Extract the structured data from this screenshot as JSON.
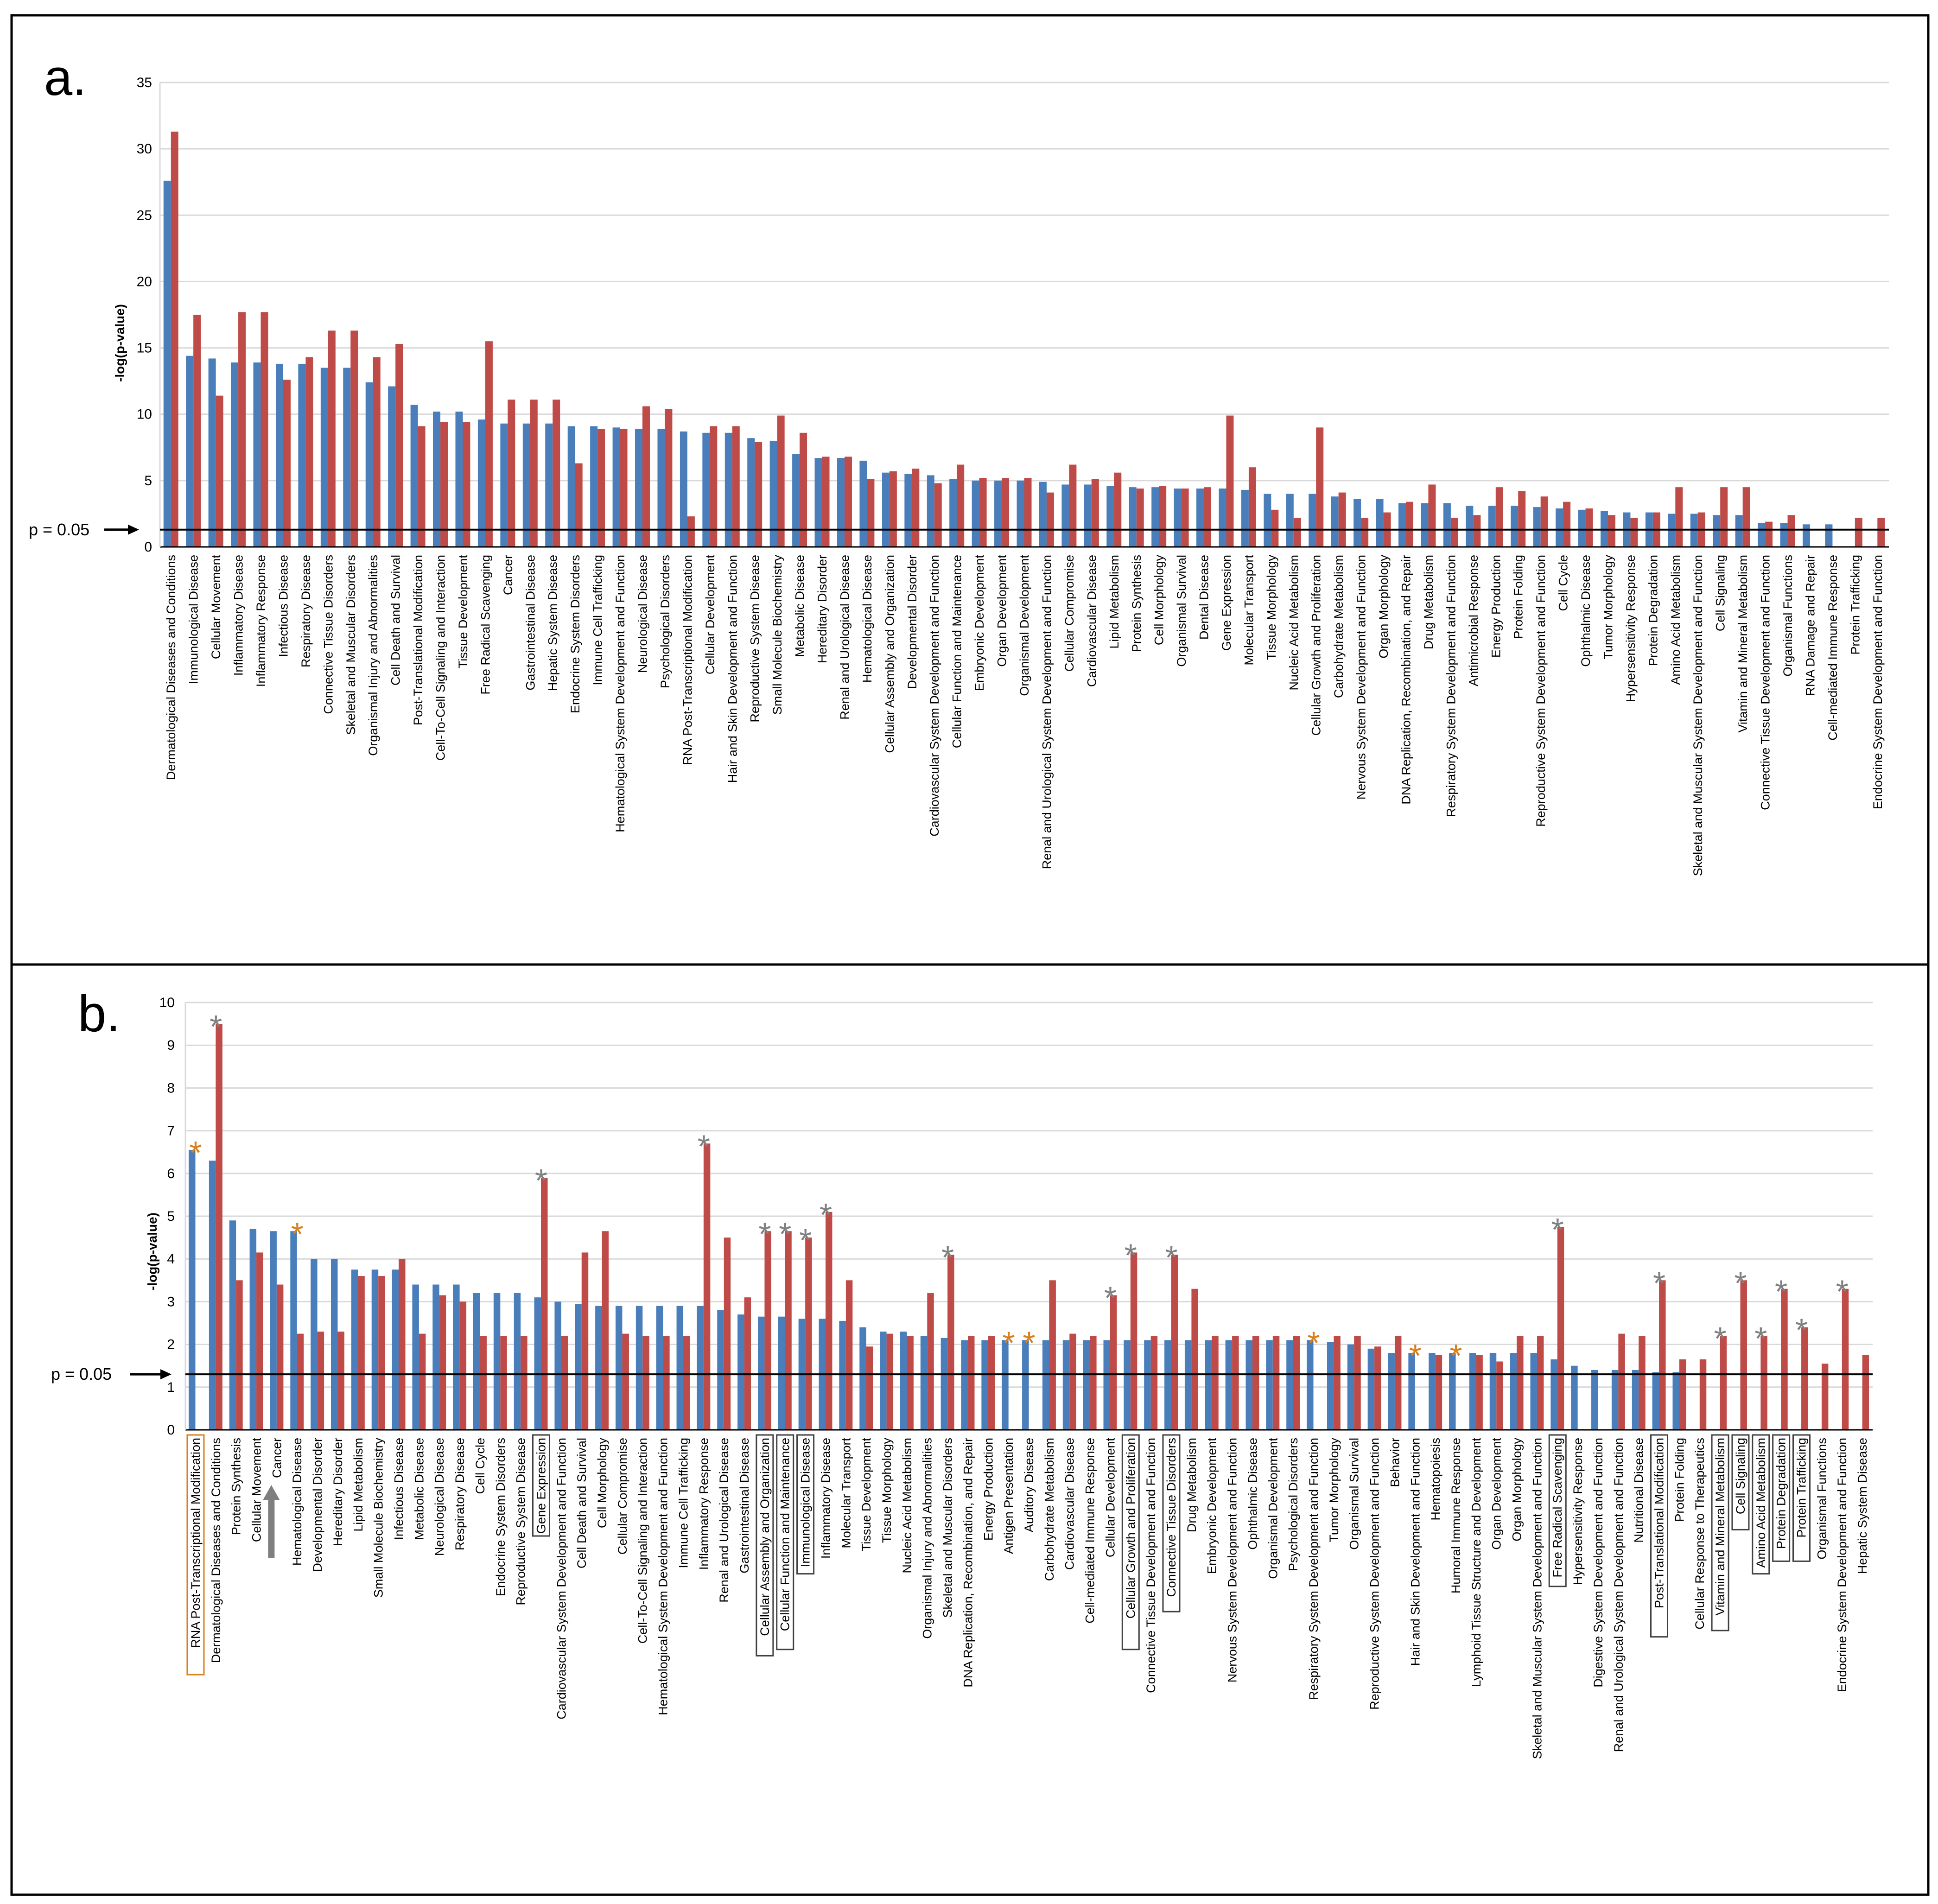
{
  "chart_data": [
    {
      "panel": "a.",
      "type": "bar",
      "ylabel": "-log(p-value)",
      "ylim": [
        0,
        35
      ],
      "yticks": [
        0,
        5,
        10,
        15,
        20,
        25,
        30,
        35
      ],
      "threshold": {
        "label": "p = 0.05",
        "value": 1.3
      },
      "categories": [
        "Dermatological Diseases and Conditions",
        "Immunological Disease",
        "Cellular Movement",
        "Inflammatory Disease",
        "Inflammatory Response",
        "Infectious Disease",
        "Respiratory Disease",
        "Connective Tissue Disorders",
        "Skeletal and Muscular Disorders",
        "Organismal Injury and Abnormalities",
        "Cell Death and Survival",
        "Post-Translational Modification",
        "Cell-To-Cell Signaling and Interaction",
        "Tissue Development",
        "Free Radical Scavenging",
        "Cancer",
        "Gastrointestinal Disease",
        "Hepatic System Disease",
        "Endocrine System Disorders",
        "Immune Cell Trafficking",
        "Hematological System Development and Function",
        "Neurological Disease",
        "Psychological Disorders",
        "RNA Post-Transcriptional Modification",
        "Cellular Development",
        "Hair and Skin Development and Function",
        "Reproductive System Disease",
        "Small Molecule Biochemistry",
        "Metabolic Disease",
        "Hereditary Disorder",
        "Renal and Urological Disease",
        "Hematological Disease",
        "Cellular Assembly and Organization",
        "Developmental Disorder",
        "Cardiovascular System Development and Function",
        "Cellular Function and Maintenance",
        "Embryonic Development",
        "Organ Development",
        "Organismal Development",
        "Renal and Urological System Development and Function",
        "Cellular Compromise",
        "Cardiovascular Disease",
        "Lipid Metabolism",
        "Protein Synthesis",
        "Cell Morphology",
        "Organismal Survival",
        "Dental Disease",
        "Gene Expression",
        "Molecular Transport",
        "Tissue Morphology",
        "Nucleic Acid Metabolism",
        "Cellular Growth and Proliferation",
        "Carbohydrate Metabolism",
        "Nervous System Development and Function",
        "Organ Morphology",
        "DNA Replication, Recombination, and Repair",
        "Drug Metabolism",
        "Respiratory System Development and Function",
        "Antimicrobial Response",
        "Energy Production",
        "Protein Folding",
        "Reproductive System Development and Function",
        "Cell Cycle",
        "Ophthalmic Disease",
        "Tumor Morphology",
        "Hypersensitivity Response",
        "Protein Degradation",
        "Amino Acid Metabolism",
        "Skeletal and Muscular System Development and Function",
        "Cell Signaling",
        "Vitamin and Mineral Metabolism",
        "Connective Tissue Development and Function",
        "Organismal Functions",
        "RNA Damage and Repair",
        "Cell-mediated Immune Response",
        "Protein Trafficking",
        "Endocrine System Development and Function"
      ],
      "series": [
        {
          "name": "blue",
          "color": "#4a7ebb",
          "values": [
            27.6,
            14.4,
            14.2,
            13.9,
            13.9,
            13.8,
            13.8,
            13.5,
            13.5,
            12.4,
            12.1,
            10.7,
            10.2,
            10.2,
            9.6,
            9.3,
            9.3,
            9.3,
            9.1,
            9.1,
            9.0,
            8.9,
            8.9,
            8.7,
            8.6,
            8.6,
            8.2,
            8.0,
            7.0,
            6.7,
            6.7,
            6.5,
            5.6,
            5.5,
            5.4,
            5.1,
            5.0,
            5.0,
            5.0,
            4.9,
            4.7,
            4.7,
            4.6,
            4.5,
            4.5,
            4.4,
            4.4,
            4.4,
            4.3,
            4.0,
            4.0,
            4.0,
            3.8,
            3.6,
            3.6,
            3.3,
            3.3,
            3.3,
            3.1,
            3.1,
            3.1,
            3.0,
            2.9,
            2.8,
            2.7,
            2.6,
            2.6,
            2.5,
            2.5,
            2.4,
            2.4,
            1.8,
            1.8,
            1.7,
            1.7,
            null,
            null
          ]
        },
        {
          "name": "red",
          "color": "#be4b48",
          "values": [
            31.3,
            17.5,
            11.4,
            17.7,
            17.7,
            12.6,
            14.3,
            16.3,
            16.3,
            14.3,
            15.3,
            9.1,
            9.4,
            9.4,
            15.5,
            11.1,
            11.1,
            11.1,
            6.3,
            8.9,
            8.9,
            10.6,
            10.4,
            2.3,
            9.1,
            9.1,
            7.9,
            9.9,
            8.6,
            6.8,
            6.8,
            5.1,
            5.7,
            5.9,
            4.8,
            6.2,
            5.2,
            5.2,
            5.2,
            4.1,
            6.2,
            5.1,
            5.6,
            4.4,
            4.6,
            4.4,
            4.5,
            9.9,
            6.0,
            2.8,
            2.2,
            9.0,
            4.1,
            2.2,
            2.6,
            3.4,
            4.7,
            2.2,
            2.4,
            4.5,
            4.2,
            3.8,
            3.4,
            2.9,
            2.4,
            2.2,
            2.6,
            4.5,
            2.6,
            4.5,
            4.5,
            1.9,
            2.4,
            null,
            null,
            2.2,
            2.2
          ]
        }
      ]
    },
    {
      "panel": "b.",
      "type": "bar",
      "ylabel": "-log(p-value)",
      "ylim": [
        0,
        10
      ],
      "yticks": [
        0,
        1,
        2,
        3,
        4,
        5,
        6,
        7,
        8,
        9,
        10
      ],
      "threshold": {
        "label": "p = 0.05",
        "value": 1.3
      },
      "categories": [
        "RNA Post-Transcriptional Modification",
        "Dermatological Diseases and Conditions",
        "Protein Synthesis",
        "Cellular Movement",
        "Cancer",
        "Hematological Disease",
        "Developmental Disorder",
        "Hereditary Disorder",
        "Lipid Metabolism",
        "Small Molecule Biochemistry",
        "Infectious Disease",
        "Metabolic Disease",
        "Neurological Disease",
        "Respiratory Disease",
        "Cell Cycle",
        "Endocrine System Disorders",
        "Reproductive System Disease",
        "Gene Expression",
        "Cardiovascular System Development and Function",
        "Cell Death and Survival",
        "Cell Morphology",
        "Cellular Compromise",
        "Cell-To-Cell Signaling and Interaction",
        "Hematological System Development and Function",
        "Immune Cell Trafficking",
        "Inflammatory Response",
        "Renal and Urological Disease",
        "Gastrointestinal Disease",
        "Cellular Assembly and Organization",
        "Cellular Function and Maintenance",
        "Immunological Disease",
        "Inflammatory Disease",
        "Molecular Transport",
        "Tissue Development",
        "Tissue Morphology",
        "Nucleic Acid Metabolism",
        "Organismal Injury and Abnormalities",
        "Skeletal and Muscular Disorders",
        "DNA Replication, Recombination, and Repair",
        "Energy Production",
        "Antigen Presentation",
        "Auditory Disease",
        "Carbohydrate Metabolism",
        "Cardiovascular Disease",
        "Cell-mediated Immune Response",
        "Cellular Development",
        "Cellular Growth and Proliferation",
        "Connective Tissue Development and Function",
        "Connective Tissue Disorders",
        "Drug Metabolism",
        "Embryonic Development",
        "Nervous System Development and Function",
        "Ophthalmic Disease",
        "Organismal Development",
        "Psychological Disorders",
        "Respiratory System Development and Function",
        "Tumor Morphology",
        "Organismal Survival",
        "Reproductive System Development and Function",
        "Behavior",
        "Hair and Skin Development and Function",
        "Hematopoiesis",
        "Humoral Immune Response",
        "Lymphoid Tissue Structure and Development",
        "Organ Development",
        "Organ Morphology",
        "Skeletal and Muscular System Development and Function",
        "Free Radical Scavenging",
        "Hypersensitivity Response",
        "Digestive System Development and Function",
        "Renal and Urological System Development and Function",
        "Nutritional Disease",
        "Post-Translational Modification",
        "Protein Folding",
        "Cellular Response to Therapeutics",
        "Vitamin and Mineral Metabolism",
        "Cell Signaling",
        "Amino Acid Metabolism",
        "Protein Degradation",
        "Protein Trafficking",
        "Organismal Functions",
        "Endocrine System Development and Function",
        "Hepatic System Disease"
      ],
      "boxed": [
        "RNA Post-Transcriptional Modification",
        "Gene Expression",
        "Cellular Assembly and Organization",
        "Cellular Function and Maintenance",
        "Immunological Disease",
        "Cellular Growth and Proliferation",
        "Connective Tissue Disorders",
        "Free Radical Scavenging",
        "Post-Translational Modification",
        "Vitamin and Mineral Metabolism",
        "Cell Signaling",
        "Amino Acid Metabolism",
        "Protein Degradation",
        "Protein Trafficking"
      ],
      "arrow_marker": "Cancer",
      "series": [
        {
          "name": "blue",
          "color": "#4a7ebb",
          "values": [
            6.55,
            6.3,
            4.9,
            4.7,
            4.65,
            4.65,
            4.0,
            4.0,
            3.75,
            3.75,
            3.75,
            3.4,
            3.4,
            3.4,
            3.2,
            3.2,
            3.2,
            3.1,
            3.0,
            2.95,
            2.9,
            2.9,
            2.9,
            2.9,
            2.9,
            2.9,
            2.8,
            2.7,
            2.65,
            2.65,
            2.6,
            2.6,
            2.55,
            2.4,
            2.3,
            2.3,
            2.2,
            2.15,
            2.1,
            2.1,
            2.1,
            2.1,
            2.1,
            2.1,
            2.1,
            2.1,
            2.1,
            2.1,
            2.1,
            2.1,
            2.1,
            2.1,
            2.1,
            2.1,
            2.1,
            2.1,
            2.05,
            2.0,
            1.9,
            1.8,
            1.8,
            1.8,
            1.8,
            1.8,
            1.8,
            1.8,
            1.8,
            1.65,
            1.5,
            1.4,
            1.4,
            1.4,
            1.35,
            1.35,
            null,
            null,
            null,
            null,
            null,
            null,
            null,
            null,
            null
          ]
        },
        {
          "name": "red",
          "color": "#be4b48",
          "values": [
            null,
            9.5,
            3.5,
            4.15,
            3.4,
            2.25,
            2.3,
            2.3,
            3.6,
            3.6,
            4.0,
            2.25,
            3.15,
            3.0,
            2.2,
            2.2,
            2.2,
            5.9,
            2.2,
            4.15,
            4.65,
            2.25,
            2.2,
            2.2,
            2.2,
            6.7,
            4.5,
            3.1,
            4.65,
            4.65,
            4.5,
            5.1,
            3.5,
            1.95,
            2.25,
            2.2,
            3.2,
            4.1,
            2.2,
            2.2,
            null,
            null,
            3.5,
            2.25,
            2.2,
            3.15,
            4.15,
            2.2,
            4.1,
            3.3,
            2.2,
            2.2,
            2.2,
            2.2,
            2.2,
            null,
            2.2,
            2.2,
            1.95,
            2.2,
            null,
            1.75,
            null,
            1.75,
            1.6,
            2.2,
            2.2,
            4.75,
            null,
            null,
            2.25,
            2.2,
            3.5,
            1.65,
            1.65,
            2.2,
            3.5,
            2.2,
            3.3,
            2.4,
            1.55,
            3.3,
            1.75
          ]
        }
      ],
      "asterisks": [
        {
          "category": "RNA Post-Transcriptional Modification",
          "color": "#d9801e"
        },
        {
          "category": "Dermatological Diseases and Conditions",
          "color": "#808080"
        },
        {
          "category": "Hematological Disease",
          "color": "#d9801e"
        },
        {
          "category": "Gene Expression",
          "color": "#808080"
        },
        {
          "category": "Inflammatory Response",
          "color": "#808080"
        },
        {
          "category": "Cellular Assembly and Organization",
          "color": "#808080"
        },
        {
          "category": "Cellular Function and Maintenance",
          "color": "#808080"
        },
        {
          "category": "Immunological Disease",
          "color": "#808080"
        },
        {
          "category": "Inflammatory Disease",
          "color": "#808080"
        },
        {
          "category": "Skeletal and Muscular Disorders",
          "color": "#808080"
        },
        {
          "category": "Antigen Presentation",
          "color": "#d9801e"
        },
        {
          "category": "Auditory Disease",
          "color": "#d9801e"
        },
        {
          "category": "Cellular Development",
          "color": "#808080"
        },
        {
          "category": "Cellular Growth and Proliferation",
          "color": "#808080"
        },
        {
          "category": "Connective Tissue Disorders",
          "color": "#808080"
        },
        {
          "category": "Respiratory System Development and Function",
          "color": "#d9801e"
        },
        {
          "category": "Hair and Skin Development and Function",
          "color": "#d9801e"
        },
        {
          "category": "Humoral Immune Response",
          "color": "#d9801e"
        },
        {
          "category": "Free Radical Scavenging",
          "color": "#808080"
        },
        {
          "category": "Post-Translational Modification",
          "color": "#808080"
        },
        {
          "category": "Vitamin and Mineral Metabolism",
          "color": "#808080"
        },
        {
          "category": "Cell Signaling",
          "color": "#808080"
        },
        {
          "category": "Amino Acid Metabolism",
          "color": "#808080"
        },
        {
          "category": "Protein Degradation",
          "color": "#808080"
        },
        {
          "category": "Protein Trafficking",
          "color": "#808080"
        },
        {
          "category": "Endocrine System Development and Function",
          "color": "#808080"
        }
      ]
    }
  ],
  "colors": {
    "grid": "#d9d9d9",
    "asterisk_orange": "#d9801e",
    "asterisk_gray": "#808080",
    "arrow_gray": "#7f7f7f",
    "orange_box": "#d9801e"
  }
}
